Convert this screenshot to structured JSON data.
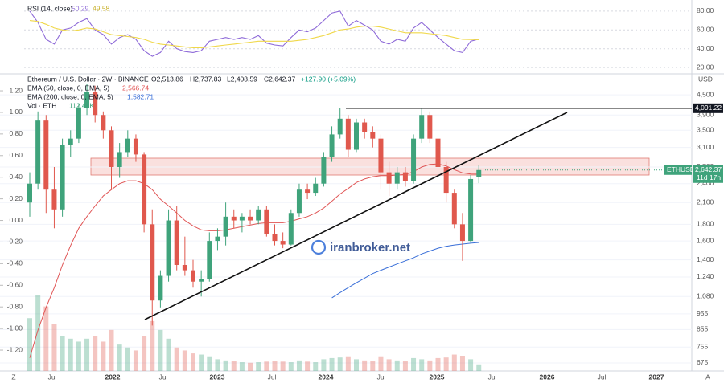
{
  "chart_data": [
    {
      "type": "candlestick",
      "legend": {
        "symbol": "Ethereum / U.S. Dollar · 2W · BINANCE",
        "ohlc": [
          "O2,513.86",
          "H2,737.83",
          "L2,408.59",
          "C2,642.37"
        ],
        "change": "+127.90 (+5.09%)"
      },
      "currency": "USD",
      "ohlc": [
        [
          2100,
          2600,
          1900,
          2400
        ],
        [
          2400,
          4000,
          2300,
          3750
        ],
        [
          3750,
          3900,
          1950,
          2300
        ],
        [
          2300,
          2700,
          1750,
          2000
        ],
        [
          2000,
          3300,
          1900,
          3150
        ],
        [
          3150,
          3500,
          2900,
          3300
        ],
        [
          3300,
          4200,
          3200,
          4100
        ],
        [
          4100,
          4870,
          3900,
          4600
        ],
        [
          4600,
          4800,
          3700,
          3900
        ],
        [
          3900,
          4000,
          3300,
          3500
        ],
        [
          3500,
          3600,
          2300,
          2700
        ],
        [
          2700,
          3200,
          2500,
          3000
        ],
        [
          3000,
          3500,
          2900,
          3300
        ],
        [
          3300,
          3400,
          2800,
          2950
        ],
        [
          2950,
          3000,
          1700,
          1800
        ],
        [
          1800,
          2000,
          880,
          1050
        ],
        [
          1050,
          1300,
          1000,
          1250
        ],
        [
          1250,
          2000,
          1200,
          1850
        ],
        [
          1850,
          2050,
          1300,
          1350
        ],
        [
          1350,
          1650,
          1250,
          1300
        ],
        [
          1300,
          1400,
          1150,
          1200
        ],
        [
          1200,
          1300,
          1080,
          1220
        ],
        [
          1220,
          1700,
          1200,
          1600
        ],
        [
          1600,
          1750,
          1500,
          1650
        ],
        [
          1650,
          2100,
          1550,
          1900
        ],
        [
          1900,
          2000,
          1750,
          1850
        ],
        [
          1850,
          1950,
          1700,
          1900
        ],
        [
          1900,
          2000,
          1800,
          1850
        ],
        [
          1850,
          2050,
          1800,
          2000
        ],
        [
          2000,
          2050,
          1650,
          1680
        ],
        [
          1680,
          1800,
          1550,
          1600
        ],
        [
          1600,
          1700,
          1520,
          1560
        ],
        [
          1560,
          2000,
          1550,
          1950
        ],
        [
          1950,
          2400,
          1900,
          2300
        ],
        [
          2300,
          2400,
          2150,
          2250
        ],
        [
          2250,
          2500,
          2200,
          2400
        ],
        [
          2400,
          3000,
          2350,
          2900
        ],
        [
          2900,
          3600,
          2800,
          3400
        ],
        [
          3400,
          4090,
          3300,
          3800
        ],
        [
          3800,
          3900,
          2900,
          3050
        ],
        [
          3050,
          3800,
          3000,
          3700
        ],
        [
          3700,
          3800,
          3300,
          3450
        ],
        [
          3450,
          3600,
          3100,
          3300
        ],
        [
          3300,
          3400,
          2300,
          2600
        ],
        [
          2600,
          2800,
          2200,
          2400
        ],
        [
          2400,
          2700,
          2300,
          2600
        ],
        [
          2600,
          2700,
          2350,
          2450
        ],
        [
          2450,
          3400,
          2400,
          3300
        ],
        [
          3300,
          4100,
          3200,
          3900
        ],
        [
          3900,
          4000,
          3200,
          3300
        ],
        [
          3300,
          3400,
          2550,
          2700
        ],
        [
          2700,
          2800,
          2100,
          2250
        ],
        [
          2250,
          2300,
          1750,
          1800
        ],
        [
          1800,
          1950,
          1390,
          1600
        ],
        [
          1600,
          2550,
          1580,
          2480
        ],
        [
          2513.86,
          2737.83,
          2408.59,
          2642.37
        ]
      ],
      "series": [
        {
          "name": "EMA (50, close, 0, EMA, 5)",
          "value_label": "2,566.74",
          "color": "#e05555",
          "values": [
            700,
            850,
            1000,
            1150,
            1350,
            1550,
            1750,
            1900,
            2050,
            2200,
            2300,
            2400,
            2450,
            2450,
            2400,
            2300,
            2150,
            2050,
            1950,
            1850,
            1780,
            1730,
            1720,
            1720,
            1730,
            1750,
            1770,
            1790,
            1810,
            1820,
            1820,
            1820,
            1840,
            1870,
            1900,
            1950,
            2020,
            2120,
            2230,
            2320,
            2420,
            2480,
            2520,
            2540,
            2540,
            2550,
            2560,
            2610,
            2700,
            2750,
            2760,
            2720,
            2650,
            2590,
            2570,
            2566.74
          ]
        },
        {
          "name": "EMA (200, close, 0, EMA, 5)",
          "value_label": "1,582.71",
          "color": "#3a6fd8",
          "values": [
            null,
            null,
            null,
            null,
            null,
            null,
            null,
            null,
            null,
            null,
            null,
            null,
            null,
            null,
            null,
            null,
            null,
            null,
            null,
            null,
            null,
            null,
            null,
            null,
            null,
            null,
            null,
            null,
            null,
            null,
            null,
            null,
            null,
            null,
            null,
            null,
            null,
            1070,
            1110,
            1150,
            1190,
            1230,
            1270,
            1300,
            1330,
            1360,
            1390,
            1420,
            1460,
            1490,
            1520,
            1540,
            1555,
            1565,
            1575,
            1582.71
          ]
        }
      ],
      "volume": {
        "name": "Vol · ETH",
        "value_label": "112.45K",
        "values": [
          900000,
          1300000,
          1100000,
          800000,
          600000,
          550000,
          500000,
          550000,
          600000,
          500000,
          700000,
          450000,
          400000,
          350000,
          600000,
          850000,
          700000,
          550000,
          400000,
          350000,
          300000,
          280000,
          250000,
          200000,
          180000,
          170000,
          150000,
          140000,
          150000,
          160000,
          170000,
          160000,
          150000,
          180000,
          160000,
          150000,
          200000,
          220000,
          230000,
          250000,
          200000,
          180000,
          170000,
          250000,
          200000,
          180000,
          170000,
          220000,
          200000,
          180000,
          220000,
          230000,
          280000,
          260000,
          200000,
          112450
        ]
      },
      "log_scale": true,
      "ylim": [
        645,
        5130
      ],
      "yticks": [
        {
          "value": 675,
          "label": "675"
        },
        {
          "value": 755,
          "label": "755"
        },
        {
          "value": 855,
          "label": "855"
        },
        {
          "value": 955,
          "label": "955"
        },
        {
          "value": 1080,
          "label": "1,080"
        },
        {
          "value": 1240,
          "label": "1,240"
        },
        {
          "value": 1400,
          "label": "1,400"
        },
        {
          "value": 1600,
          "label": "1,600"
        },
        {
          "value": 1800,
          "label": "1,800"
        },
        {
          "value": 2100,
          "label": "2,100"
        },
        {
          "value": 2400,
          "label": "2,400"
        },
        {
          "value": 2700,
          "label": "2,700"
        },
        {
          "value": 3100,
          "label": "3,100"
        },
        {
          "value": 3500,
          "label": "3,500"
        },
        {
          "value": 3900,
          "label": "3,900"
        },
        {
          "value": 4500,
          "label": "4,500"
        }
      ],
      "y2lim": [
        -1.378,
        1.334
      ],
      "y2ticks": [
        {
          "value": 1.2,
          "label": "1.20"
        },
        {
          "value": 1,
          "label": "1.00"
        },
        {
          "value": 0.8,
          "label": "0.80"
        },
        {
          "value": 0.6,
          "label": "0.60"
        },
        {
          "value": 0.4,
          "label": "0.40"
        },
        {
          "value": 0.2,
          "label": "0.20"
        },
        {
          "value": 0,
          "label": "0.00"
        },
        {
          "value": -0.2,
          "label": "-0.20"
        },
        {
          "value": -0.4,
          "label": "-0.40"
        },
        {
          "value": -0.6,
          "label": "-0.60"
        },
        {
          "value": -0.8,
          "label": "-0.80"
        },
        {
          "value": -1,
          "label": "-1.00"
        },
        {
          "value": -1.2,
          "label": "-1.20"
        }
      ],
      "hline": {
        "value": 4091.22,
        "label": "4,091.22"
      },
      "price_tag": {
        "symbol": "ETHUSD",
        "price": "2,642.37",
        "countdown": "11d 17h"
      },
      "up_color": "#3fa37b",
      "down_color": "#e0584d",
      "time_labels": [
        "Z",
        "Jul",
        "2022",
        "Jul",
        "2023",
        "Jul",
        "2024",
        "Jul",
        "2025",
        "Jul",
        "2026",
        "Jul",
        "2027",
        "A"
      ],
      "watermark": "iranbroker.net"
    },
    {
      "type": "line",
      "title": "RSI (14, close)",
      "series": [
        {
          "name": "RSI",
          "value_label": "50.29",
          "color": "#8e6ad8",
          "values": [
            80,
            68,
            50,
            45,
            60,
            62,
            68,
            72,
            60,
            55,
            45,
            52,
            55,
            50,
            38,
            32,
            36,
            48,
            40,
            37,
            36,
            38,
            48,
            50,
            52,
            50,
            52,
            50,
            54,
            46,
            44,
            43,
            52,
            60,
            58,
            62,
            70,
            78,
            80,
            64,
            70,
            65,
            60,
            48,
            45,
            50,
            48,
            62,
            68,
            60,
            52,
            45,
            38,
            36,
            48,
            50.29
          ]
        },
        {
          "name": "RSI-based MA",
          "value_label": "49.58",
          "color": "#f0d84a",
          "values": [
            70,
            69,
            66,
            62,
            60,
            59,
            60,
            62,
            61,
            58,
            55,
            54,
            53,
            52,
            50,
            47,
            45,
            44,
            43,
            42,
            41,
            41,
            42,
            43,
            44,
            45,
            46,
            47,
            48,
            48,
            48,
            48,
            48,
            49,
            50,
            52,
            54,
            57,
            60,
            61,
            63,
            64,
            64,
            63,
            61,
            59,
            57,
            57,
            57,
            56,
            55,
            54,
            52,
            50,
            49.8,
            49.58
          ]
        }
      ],
      "ylim": [
        15,
        85
      ],
      "yticks": [
        {
          "value": 20,
          "label": "20.00"
        },
        {
          "value": 40,
          "label": "40.00"
        },
        {
          "value": 60,
          "label": "60.00"
        },
        {
          "value": 80,
          "label": "80.00"
        }
      ]
    }
  ]
}
